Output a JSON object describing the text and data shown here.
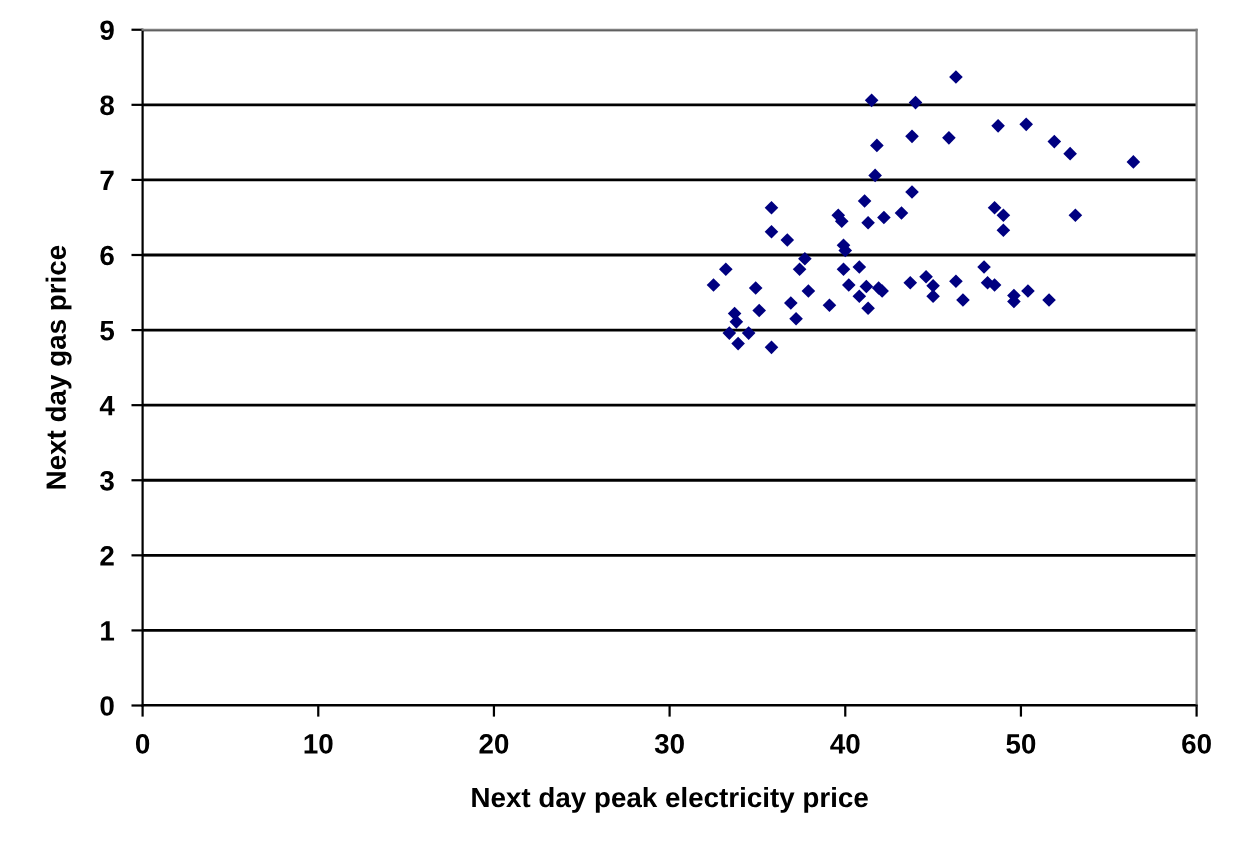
{
  "chart_data": {
    "type": "scatter",
    "xlabel": "Next day peak electricity price",
    "ylabel": "Next day gas price",
    "xlim": [
      0,
      60
    ],
    "xticks": [
      0,
      10,
      20,
      30,
      40,
      50,
      60
    ],
    "ylim": [
      0,
      9
    ],
    "yticks": [
      0,
      1,
      2,
      3,
      4,
      5,
      6,
      7,
      8,
      9
    ],
    "grid": "y",
    "marker": "diamond",
    "series": [
      {
        "color": "#000080",
        "x": [
          41.5,
          44.0,
          41.8,
          43.8,
          41.7,
          43.8,
          41.1,
          35.8,
          39.6,
          39.8,
          41.3,
          42.2,
          43.2,
          35.8,
          36.7,
          39.9,
          40.0,
          37.7,
          37.4,
          39.9,
          40.8,
          33.2,
          32.5,
          34.9,
          37.9,
          40.2,
          41.2,
          41.9,
          42.1,
          40.8,
          43.7,
          44.6,
          45.0,
          45.0,
          36.9,
          39.1,
          41.3,
          35.1,
          33.7,
          33.8,
          37.2,
          33.4,
          34.5,
          33.9,
          35.8,
          46.3,
          45.9,
          48.7,
          50.3,
          51.9,
          52.8,
          56.4,
          48.5,
          49.0,
          53.1,
          49.0,
          46.3,
          46.7,
          47.9,
          48.1,
          48.5,
          49.6,
          49.6,
          50.4,
          51.6
        ],
        "values": [
          8.06,
          8.03,
          7.46,
          7.58,
          7.06,
          6.84,
          6.72,
          6.63,
          6.53,
          6.45,
          6.43,
          6.5,
          6.56,
          6.31,
          6.2,
          6.13,
          6.06,
          5.95,
          5.81,
          5.81,
          5.84,
          5.81,
          5.6,
          5.56,
          5.52,
          5.6,
          5.58,
          5.56,
          5.52,
          5.45,
          5.63,
          5.71,
          5.59,
          5.45,
          5.36,
          5.33,
          5.29,
          5.26,
          5.22,
          5.11,
          5.15,
          4.96,
          4.96,
          4.82,
          4.77,
          8.37,
          7.56,
          7.72,
          7.74,
          7.51,
          7.35,
          7.24,
          6.63,
          6.53,
          6.53,
          6.33,
          5.65,
          5.4,
          5.84,
          5.63,
          5.6,
          5.46,
          5.38,
          5.52,
          5.4
        ]
      }
    ]
  }
}
